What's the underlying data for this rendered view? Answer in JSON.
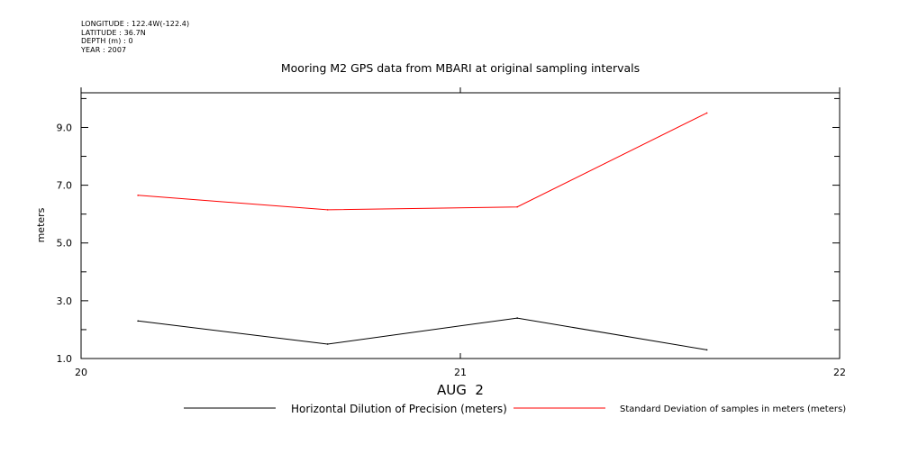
{
  "header": {
    "longitude": "LONGITUDE : 122.4W(-122.4)",
    "latitude": "LATITUDE : 36.7N",
    "depth": "DEPTH (m) : 0",
    "year": "YEAR : 2007"
  },
  "chart_data": {
    "type": "line",
    "title": "Mooring M2 GPS data from MBARI at original sampling intervals",
    "xlabel": "AUG  2",
    "ylabel": "meters",
    "xlim": [
      20,
      22
    ],
    "ylim": [
      1.0,
      10.2
    ],
    "x_ticks": [
      "20",
      "21",
      "22"
    ],
    "y_ticks": [
      "1.0",
      "3.0",
      "5.0",
      "7.0",
      "9.0"
    ],
    "series": [
      {
        "name": "Horizontal Dilution of Precision (meters)",
        "color": "#000000",
        "x": [
          20.15,
          20.65,
          21.15,
          21.65
        ],
        "values": [
          2.3,
          1.5,
          2.4,
          1.3
        ]
      },
      {
        "name": "Standard Deviation of samples in meters (meters)",
        "color": "#ff0000",
        "x": [
          20.15,
          20.65,
          21.15,
          21.65
        ],
        "values": [
          6.65,
          6.15,
          6.25,
          9.5
        ]
      }
    ],
    "legend_placement": "bottom"
  }
}
